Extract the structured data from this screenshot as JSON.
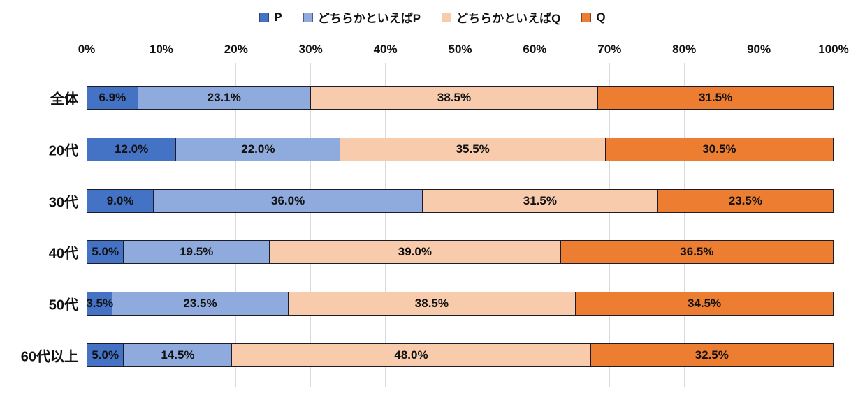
{
  "chart_data": {
    "type": "bar",
    "variant": "horizontal-stacked-100",
    "title": "",
    "categories": [
      "全体",
      "20代",
      "30代",
      "40代",
      "50代",
      "60代以上"
    ],
    "series": [
      {
        "name": "P",
        "color": "#4472C4",
        "values": [
          6.9,
          12.0,
          9.0,
          5.0,
          3.5,
          5.0
        ]
      },
      {
        "name": "どちらかといえばP",
        "color": "#8FAADC",
        "values": [
          23.1,
          22.0,
          36.0,
          19.5,
          23.5,
          14.5
        ]
      },
      {
        "name": "どちらかといえばQ",
        "color": "#F8CBAD",
        "values": [
          38.5,
          35.5,
          31.5,
          39.0,
          38.5,
          48.0
        ]
      },
      {
        "name": "Q",
        "color": "#ED7D31",
        "values": [
          31.5,
          30.5,
          23.5,
          36.5,
          34.5,
          32.5
        ]
      }
    ],
    "x_ticks": [
      "0%",
      "10%",
      "20%",
      "30%",
      "40%",
      "50%",
      "60%",
      "70%",
      "80%",
      "90%",
      "100%"
    ],
    "xlim": [
      0,
      100
    ],
    "xlabel": "",
    "ylabel": "",
    "grid": "vertical",
    "gridline_color": "#D9D9D9",
    "legend_position": "top",
    "value_label_suffix": "%",
    "value_label_decimals": 1
  }
}
